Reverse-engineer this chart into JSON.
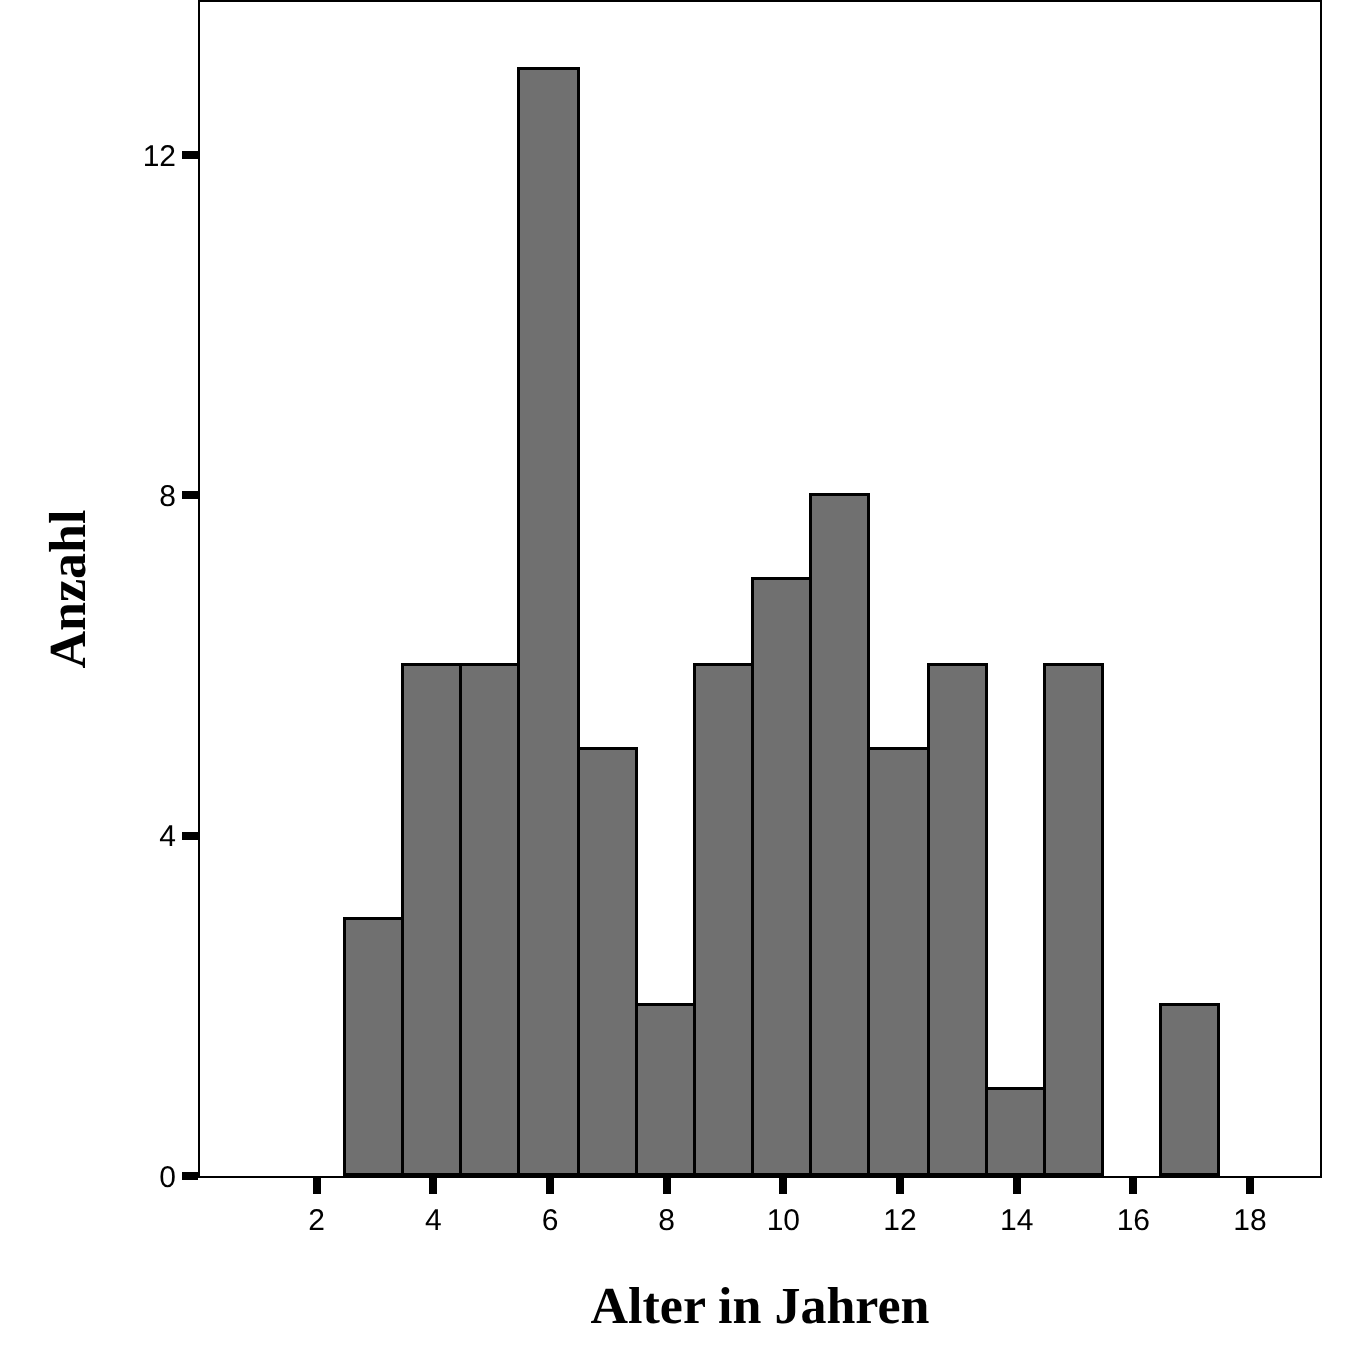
{
  "chart_data": {
    "type": "histogram",
    "xlabel": "Alter in Jahren",
    "ylabel": "Anzahl",
    "bins": [
      2.5,
      3.5,
      4.5,
      5.5,
      6.5,
      7.5,
      8.5,
      9.5,
      10.5,
      11.5,
      12.5,
      13.5,
      14.5,
      15.5,
      16.5,
      17.5
    ],
    "values": [
      3,
      6,
      6,
      13,
      5,
      2,
      6,
      7,
      8,
      5,
      6,
      1,
      6,
      0,
      2
    ],
    "color": "#707070",
    "xlim": [
      0,
      19.2
    ],
    "xticks": [
      2,
      4,
      6,
      8,
      10,
      12,
      14,
      16,
      18
    ],
    "ylim": [
      0,
      13.8
    ],
    "yticks": [
      0,
      4,
      8,
      12
    ]
  }
}
